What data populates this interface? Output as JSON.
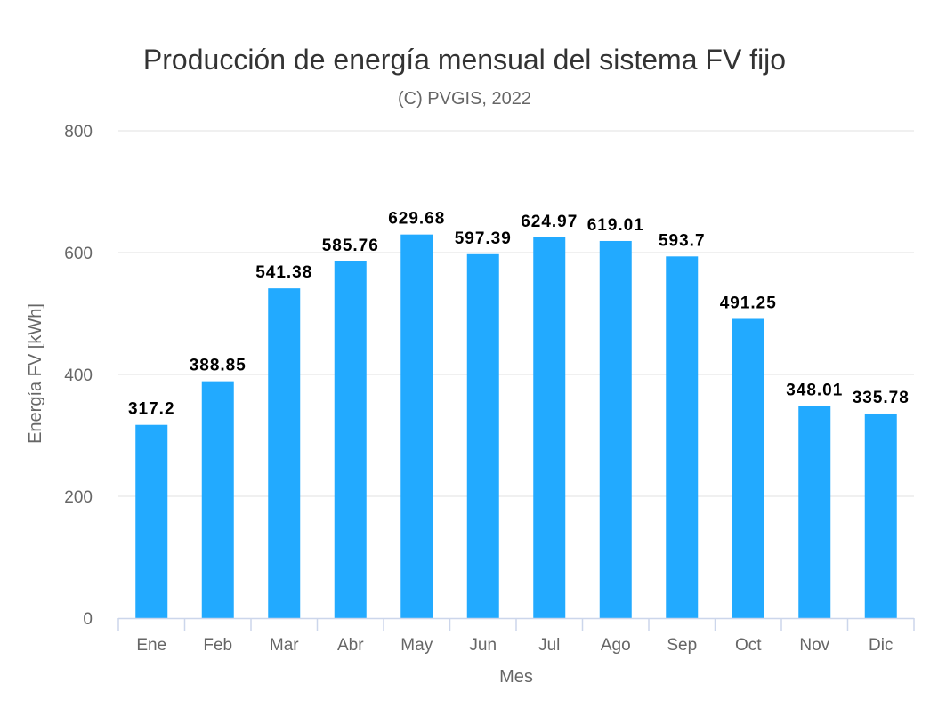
{
  "chart_data": {
    "type": "bar",
    "title": "Producción de energía mensual del sistema FV fijo",
    "subtitle": "(C) PVGIS, 2022",
    "xlabel": "Mes",
    "ylabel": "Energía FV [kWh]",
    "ylim": [
      0,
      800
    ],
    "yticks": [
      0,
      200,
      400,
      600,
      800
    ],
    "yticks_labels": [
      "0",
      "200",
      "400",
      "600",
      "800"
    ],
    "grid": true,
    "legend": "none",
    "bar_color": "#22aaff",
    "categories": [
      "Ene",
      "Feb",
      "Mar",
      "Abr",
      "May",
      "Jun",
      "Jul",
      "Ago",
      "Sep",
      "Oct",
      "Nov",
      "Dic"
    ],
    "values": [
      317.2,
      388.85,
      541.38,
      585.76,
      629.68,
      597.39,
      624.97,
      619.01,
      593.7,
      491.25,
      348.01,
      335.78
    ],
    "data_labels": [
      "317.2",
      "388.85",
      "541.38",
      "585.76",
      "629.68",
      "597.39",
      "624.97",
      "619.01",
      "593.7",
      "491.25",
      "348.01",
      "335.78"
    ]
  }
}
